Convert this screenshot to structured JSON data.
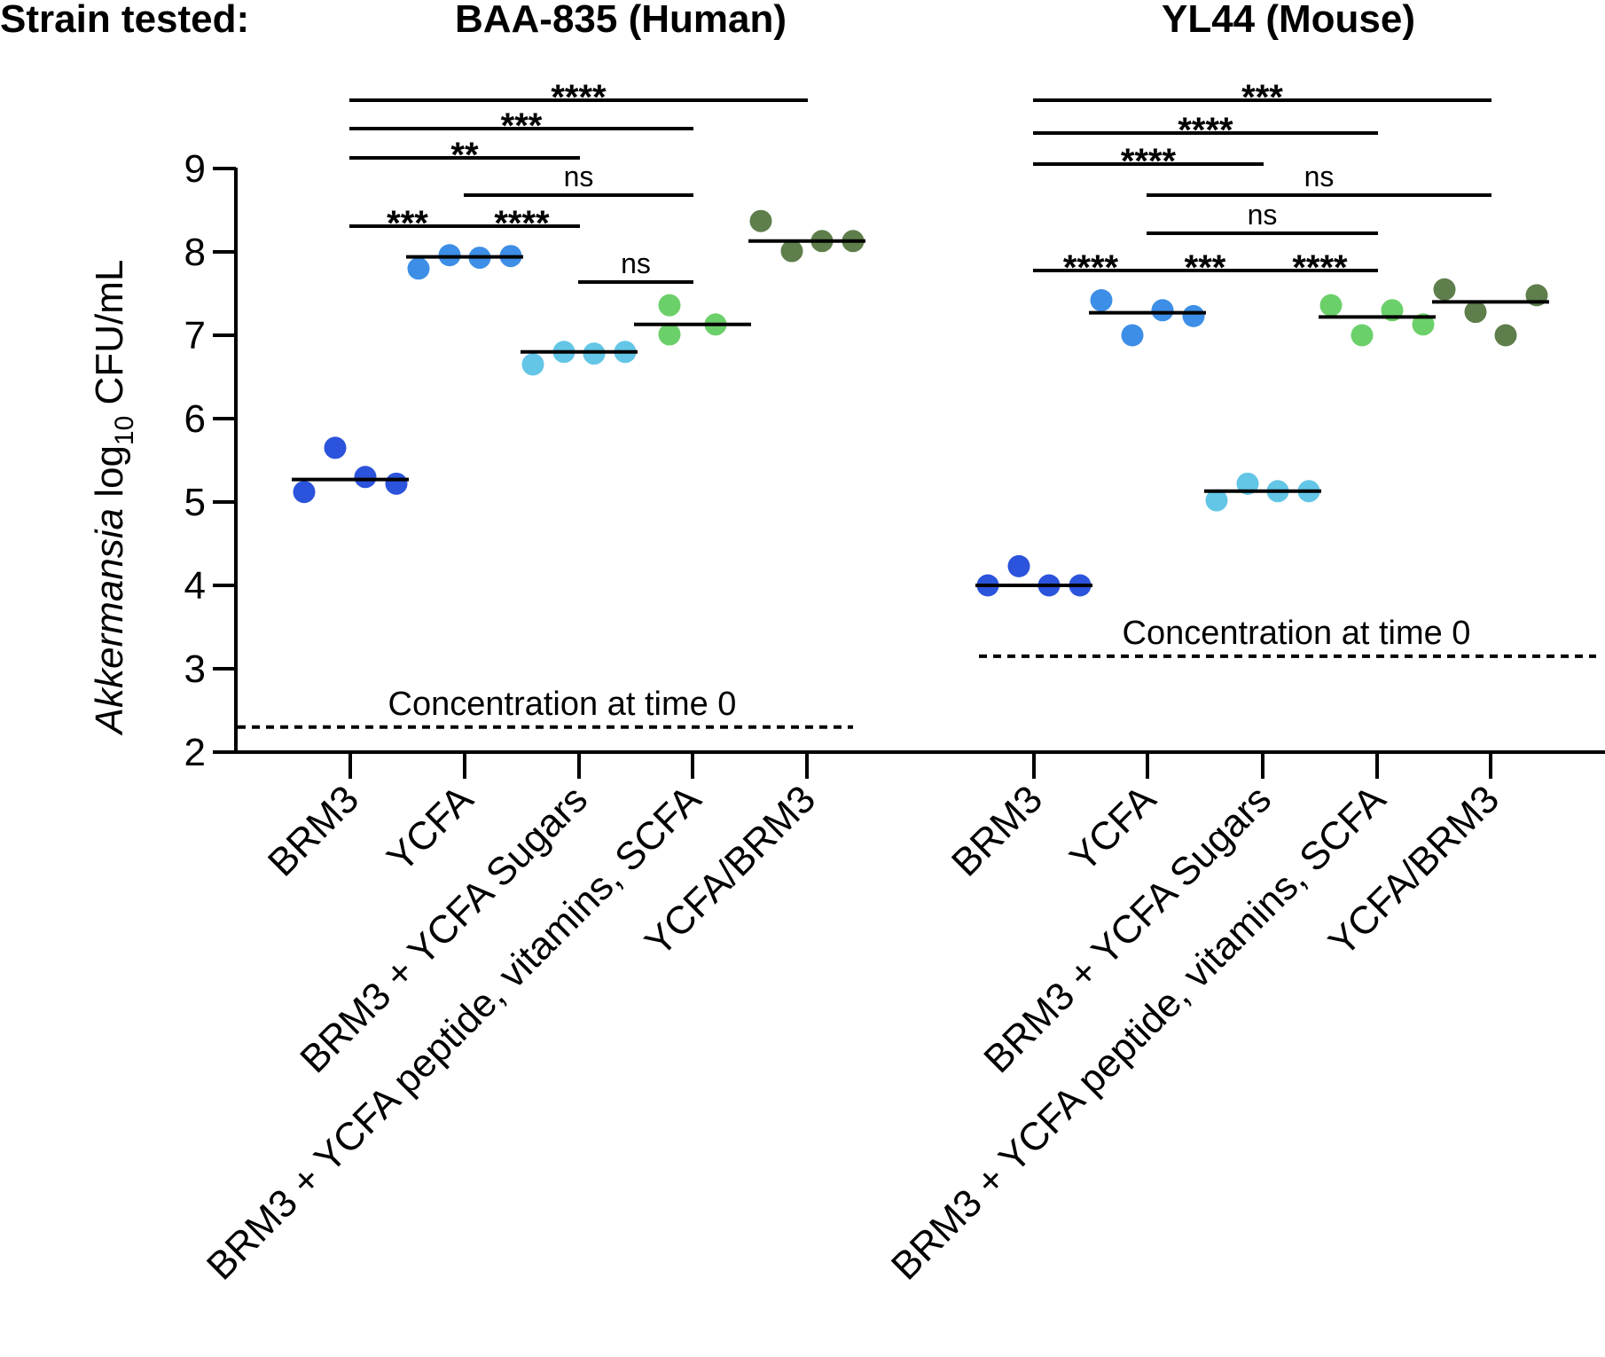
{
  "header": {
    "strain_label": "Strain tested:"
  },
  "axis": {
    "y_italic": "Akkermansia",
    "y_log": " log",
    "y_sub": "10",
    "y_unit": " CFU/mL"
  },
  "chart_data": {
    "type": "scatter",
    "description_style": "dot plot with median lines, two panels sharing a y axis",
    "y_range": [
      2,
      9
    ],
    "y_ticks": [
      2,
      3,
      4,
      5,
      6,
      7,
      8,
      9
    ],
    "categories": [
      "BRM3",
      "YCFA",
      "BRM3 + YCFA  Sugars",
      "BRM3 + YCFA peptide, vitamins, SCFA",
      "YCFA/BRM3"
    ],
    "colors": {
      "BRM3": "#2b53db",
      "YCFA": "#3d8ee6",
      "BRM3 + YCFA  Sugars": "#63c6e6",
      "BRM3 + YCFA peptide, vitamins, SCFA": "#6cd06a",
      "YCFA/BRM3": "#5e7e4b"
    },
    "panels": [
      {
        "title": "BAA-835 (Human)",
        "baseline": 2.3,
        "baseline_label": "Concentration at time 0",
        "groups": [
          {
            "category": "BRM3",
            "values": [
              5.12,
              5.65,
              5.3,
              5.22
            ],
            "median": 5.27
          },
          {
            "category": "YCFA",
            "values": [
              7.8,
              7.96,
              7.93,
              7.95
            ],
            "median": 7.94
          },
          {
            "category": "BRM3 + YCFA  Sugars",
            "values": [
              6.65,
              6.8,
              6.78,
              6.8
            ],
            "median": 6.8
          },
          {
            "category": "BRM3 + YCFA peptide, vitamins, SCFA",
            "values": [
              7.36,
              7.01,
              7.13
            ],
            "median": 7.13
          },
          {
            "category": "YCFA/BRM3",
            "values": [
              8.37,
              8.01,
              8.13,
              8.13
            ],
            "median": 8.13
          }
        ],
        "comparisons": [
          {
            "from": "BRM3",
            "to": "YCFA/BRM3",
            "label": "****"
          },
          {
            "from": "BRM3",
            "to": "BRM3 + YCFA peptide, vitamins, SCFA",
            "label": "***"
          },
          {
            "from": "BRM3",
            "to": "BRM3 + YCFA  Sugars",
            "label": "**"
          },
          {
            "from": "YCFA",
            "to": "BRM3 + YCFA peptide, vitamins, SCFA",
            "label": "ns"
          },
          {
            "from": "BRM3",
            "to": "YCFA",
            "label": "***"
          },
          {
            "from": "YCFA",
            "to": "BRM3 + YCFA  Sugars",
            "label": "****"
          },
          {
            "from": "BRM3 + YCFA  Sugars",
            "to": "BRM3 + YCFA peptide, vitamins, SCFA",
            "label": "ns"
          }
        ]
      },
      {
        "title": "YL44 (Mouse)",
        "baseline": 3.15,
        "baseline_label": "Concentration at time 0",
        "groups": [
          {
            "category": "BRM3",
            "values": [
              4.0,
              4.23,
              4.0,
              4.0
            ],
            "median": 4.0
          },
          {
            "category": "YCFA",
            "values": [
              7.42,
              7.0,
              7.3,
              7.23
            ],
            "median": 7.27
          },
          {
            "category": "BRM3 + YCFA  Sugars",
            "values": [
              5.02,
              5.22,
              5.13,
              5.13
            ],
            "median": 5.13
          },
          {
            "category": "BRM3 + YCFA peptide, vitamins, SCFA",
            "values": [
              7.36,
              7.0,
              7.3,
              7.13
            ],
            "median": 7.22
          },
          {
            "category": "YCFA/BRM3",
            "values": [
              7.55,
              7.28,
              7.0,
              7.48
            ],
            "median": 7.4
          }
        ],
        "comparisons": [
          {
            "from": "BRM3",
            "to": "YCFA/BRM3",
            "label": "***"
          },
          {
            "from": "BRM3",
            "to": "BRM3 + YCFA peptide, vitamins, SCFA",
            "label": "****"
          },
          {
            "from": "BRM3",
            "to": "BRM3 + YCFA  Sugars",
            "label": "****"
          },
          {
            "from": "YCFA",
            "to": "YCFA/BRM3",
            "label": "ns"
          },
          {
            "from": "YCFA",
            "to": "BRM3 + YCFA peptide, vitamins, SCFA",
            "label": "ns"
          },
          {
            "from": "BRM3",
            "to": "YCFA",
            "label": "****"
          },
          {
            "from": "YCFA",
            "to": "BRM3 + YCFA  Sugars",
            "label": "***"
          },
          {
            "from": "BRM3 + YCFA  Sugars",
            "to": "BRM3 + YCFA peptide, vitamins, SCFA",
            "label": "****"
          }
        ]
      }
    ]
  }
}
